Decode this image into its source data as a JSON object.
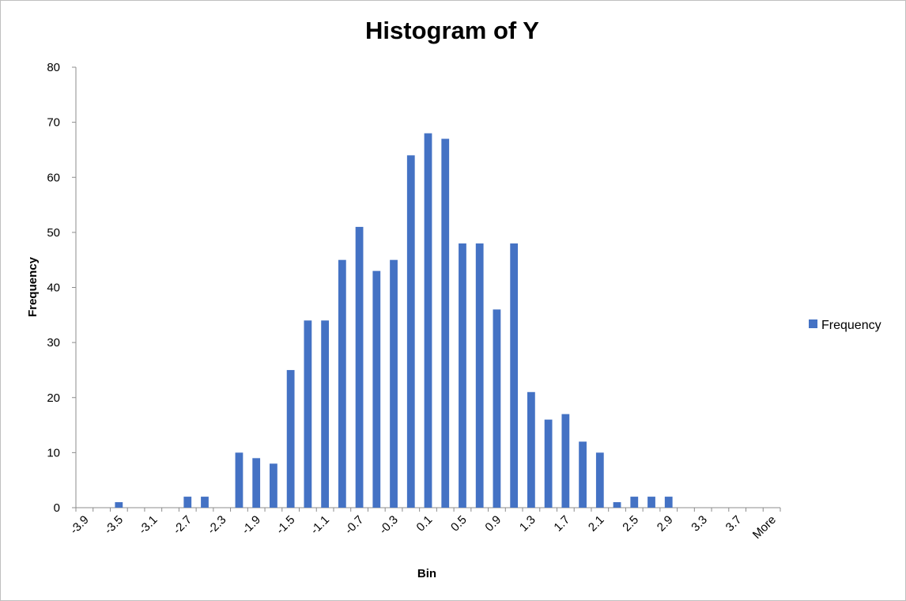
{
  "chart_data": {
    "type": "bar",
    "title": "Histogram of Y",
    "xlabel": "Bin",
    "ylabel": "Frequency",
    "ylim": [
      0,
      80
    ],
    "y_ticks": [
      "0",
      "10",
      "20",
      "30",
      "40",
      "50",
      "60",
      "70",
      "80"
    ],
    "categories": [
      "-3.9",
      "-3.7",
      "-3.5",
      "-3.3",
      "-3.1",
      "-2.9",
      "-2.7",
      "-2.5",
      "-2.3",
      "-2.1",
      "-1.9",
      "-1.7",
      "-1.5",
      "-1.3",
      "-1.1",
      "-0.9",
      "-0.7",
      "-0.5",
      "-0.3",
      "-0.1",
      "0.1",
      "0.3",
      "0.5",
      "0.7",
      "0.9",
      "1.1",
      "1.3",
      "1.5",
      "1.7",
      "1.9",
      "2.1",
      "2.3",
      "2.5",
      "2.7",
      "2.9",
      "3.1",
      "3.3",
      "3.5",
      "3.7",
      "3.9",
      "More"
    ],
    "series": [
      {
        "name": "Frequency",
        "color": "#4472c4",
        "values": [
          0,
          0,
          1,
          0,
          0,
          0,
          2,
          2,
          0,
          10,
          9,
          8,
          25,
          34,
          34,
          45,
          51,
          43,
          45,
          64,
          68,
          67,
          48,
          48,
          36,
          48,
          21,
          16,
          17,
          12,
          10,
          1,
          2,
          2,
          2,
          0,
          0,
          0,
          0,
          0,
          0
        ]
      }
    ],
    "legend": {
      "position": "right"
    },
    "grid": false
  }
}
